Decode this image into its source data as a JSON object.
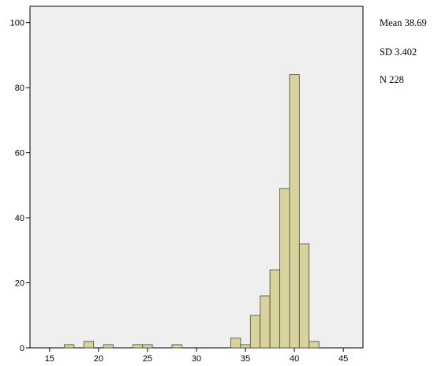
{
  "chart_data": {
    "type": "bar",
    "title": "",
    "xlabel": "",
    "ylabel": "",
    "xlim": [
      13,
      47
    ],
    "ylim": [
      0,
      105
    ],
    "x_ticks": [
      15,
      20,
      25,
      30,
      35,
      40,
      45
    ],
    "y_ticks": [
      0,
      20,
      40,
      60,
      80,
      100
    ],
    "bin_width": 1,
    "bins": [
      {
        "x": 17,
        "value": 1
      },
      {
        "x": 19,
        "value": 2
      },
      {
        "x": 21,
        "value": 1
      },
      {
        "x": 24,
        "value": 1
      },
      {
        "x": 25,
        "value": 1
      },
      {
        "x": 28,
        "value": 1
      },
      {
        "x": 34,
        "value": 3
      },
      {
        "x": 35,
        "value": 1
      },
      {
        "x": 36,
        "value": 10
      },
      {
        "x": 37,
        "value": 16
      },
      {
        "x": 38,
        "value": 24
      },
      {
        "x": 39,
        "value": 49
      },
      {
        "x": 40,
        "value": 84
      },
      {
        "x": 41,
        "value": 32
      },
      {
        "x": 42,
        "value": 2
      }
    ],
    "bar_color": "#d8d29c",
    "bar_edge_color": "#4a4a3a",
    "plot_background": "#efefef",
    "grid": false,
    "legend": "none",
    "stats": {
      "mean": "Mean 38.69",
      "sd": "SD 3.402",
      "n": "N 228"
    }
  }
}
